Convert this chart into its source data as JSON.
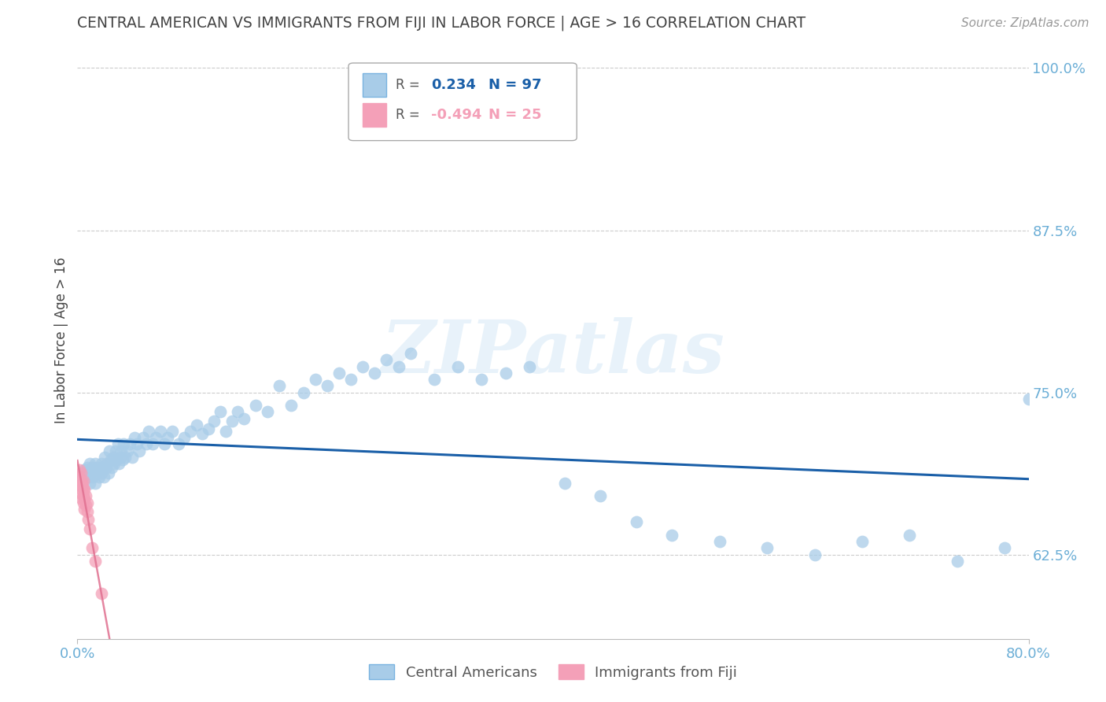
{
  "title": "CENTRAL AMERICAN VS IMMIGRANTS FROM FIJI IN LABOR FORCE | AGE > 16 CORRELATION CHART",
  "source": "Source: ZipAtlas.com",
  "ylabel": "In Labor Force | Age > 16",
  "xlim": [
    0.0,
    0.8
  ],
  "ylim": [
    0.56,
    1.02
  ],
  "ytick_right_vals": [
    0.625,
    0.75,
    0.875,
    1.0
  ],
  "ytick_right_labels": [
    "62.5%",
    "75.0%",
    "87.5%",
    "100.0%"
  ],
  "grid_color": "#cccccc",
  "blue_color": "#a8cce8",
  "pink_color": "#f4a0b8",
  "blue_line_color": "#1a5fa8",
  "pink_line_color": "#e07090",
  "R_blue": 0.234,
  "N_blue": 97,
  "R_pink": -0.494,
  "N_pink": 25,
  "legend_label_blue": "Central Americans",
  "legend_label_pink": "Immigrants from Fiji",
  "blue_x": [
    0.005,
    0.006,
    0.007,
    0.008,
    0.009,
    0.01,
    0.01,
    0.011,
    0.012,
    0.013,
    0.014,
    0.015,
    0.015,
    0.016,
    0.017,
    0.018,
    0.019,
    0.02,
    0.02,
    0.021,
    0.022,
    0.023,
    0.024,
    0.025,
    0.026,
    0.027,
    0.028,
    0.029,
    0.03,
    0.031,
    0.032,
    0.033,
    0.034,
    0.035,
    0.036,
    0.037,
    0.038,
    0.039,
    0.04,
    0.042,
    0.044,
    0.046,
    0.048,
    0.05,
    0.052,
    0.055,
    0.058,
    0.06,
    0.063,
    0.066,
    0.07,
    0.073,
    0.076,
    0.08,
    0.085,
    0.09,
    0.095,
    0.1,
    0.105,
    0.11,
    0.115,
    0.12,
    0.125,
    0.13,
    0.135,
    0.14,
    0.15,
    0.16,
    0.17,
    0.18,
    0.19,
    0.2,
    0.21,
    0.22,
    0.23,
    0.24,
    0.25,
    0.26,
    0.27,
    0.28,
    0.3,
    0.32,
    0.34,
    0.36,
    0.38,
    0.41,
    0.44,
    0.47,
    0.5,
    0.54,
    0.58,
    0.62,
    0.66,
    0.7,
    0.74,
    0.78,
    0.8
  ],
  "blue_y": [
    0.685,
    0.69,
    0.688,
    0.692,
    0.685,
    0.68,
    0.695,
    0.688,
    0.692,
    0.685,
    0.69,
    0.695,
    0.68,
    0.688,
    0.692,
    0.685,
    0.69,
    0.688,
    0.695,
    0.692,
    0.685,
    0.7,
    0.692,
    0.695,
    0.688,
    0.705,
    0.698,
    0.692,
    0.7,
    0.695,
    0.705,
    0.698,
    0.71,
    0.695,
    0.7,
    0.705,
    0.698,
    0.71,
    0.7,
    0.705,
    0.71,
    0.7,
    0.715,
    0.71,
    0.705,
    0.715,
    0.71,
    0.72,
    0.71,
    0.715,
    0.72,
    0.71,
    0.715,
    0.72,
    0.71,
    0.715,
    0.72,
    0.725,
    0.718,
    0.722,
    0.728,
    0.735,
    0.72,
    0.728,
    0.735,
    0.73,
    0.74,
    0.735,
    0.755,
    0.74,
    0.75,
    0.76,
    0.755,
    0.765,
    0.76,
    0.77,
    0.765,
    0.775,
    0.77,
    0.78,
    0.76,
    0.77,
    0.76,
    0.765,
    0.77,
    0.68,
    0.67,
    0.65,
    0.64,
    0.635,
    0.63,
    0.625,
    0.635,
    0.64,
    0.62,
    0.63,
    0.745
  ],
  "pink_x": [
    0.002,
    0.002,
    0.003,
    0.003,
    0.003,
    0.003,
    0.004,
    0.004,
    0.004,
    0.005,
    0.005,
    0.005,
    0.005,
    0.006,
    0.006,
    0.006,
    0.007,
    0.007,
    0.008,
    0.008,
    0.009,
    0.01,
    0.012,
    0.015,
    0.02
  ],
  "pink_y": [
    0.69,
    0.685,
    0.688,
    0.682,
    0.678,
    0.672,
    0.68,
    0.675,
    0.668,
    0.682,
    0.676,
    0.67,
    0.665,
    0.675,
    0.668,
    0.66,
    0.67,
    0.663,
    0.665,
    0.658,
    0.652,
    0.645,
    0.63,
    0.62,
    0.595
  ],
  "watermark": "ZIPatlas",
  "background_color": "#ffffff",
  "title_color": "#555555",
  "axis_color": "#6baed6",
  "tick_color": "#6baed6"
}
